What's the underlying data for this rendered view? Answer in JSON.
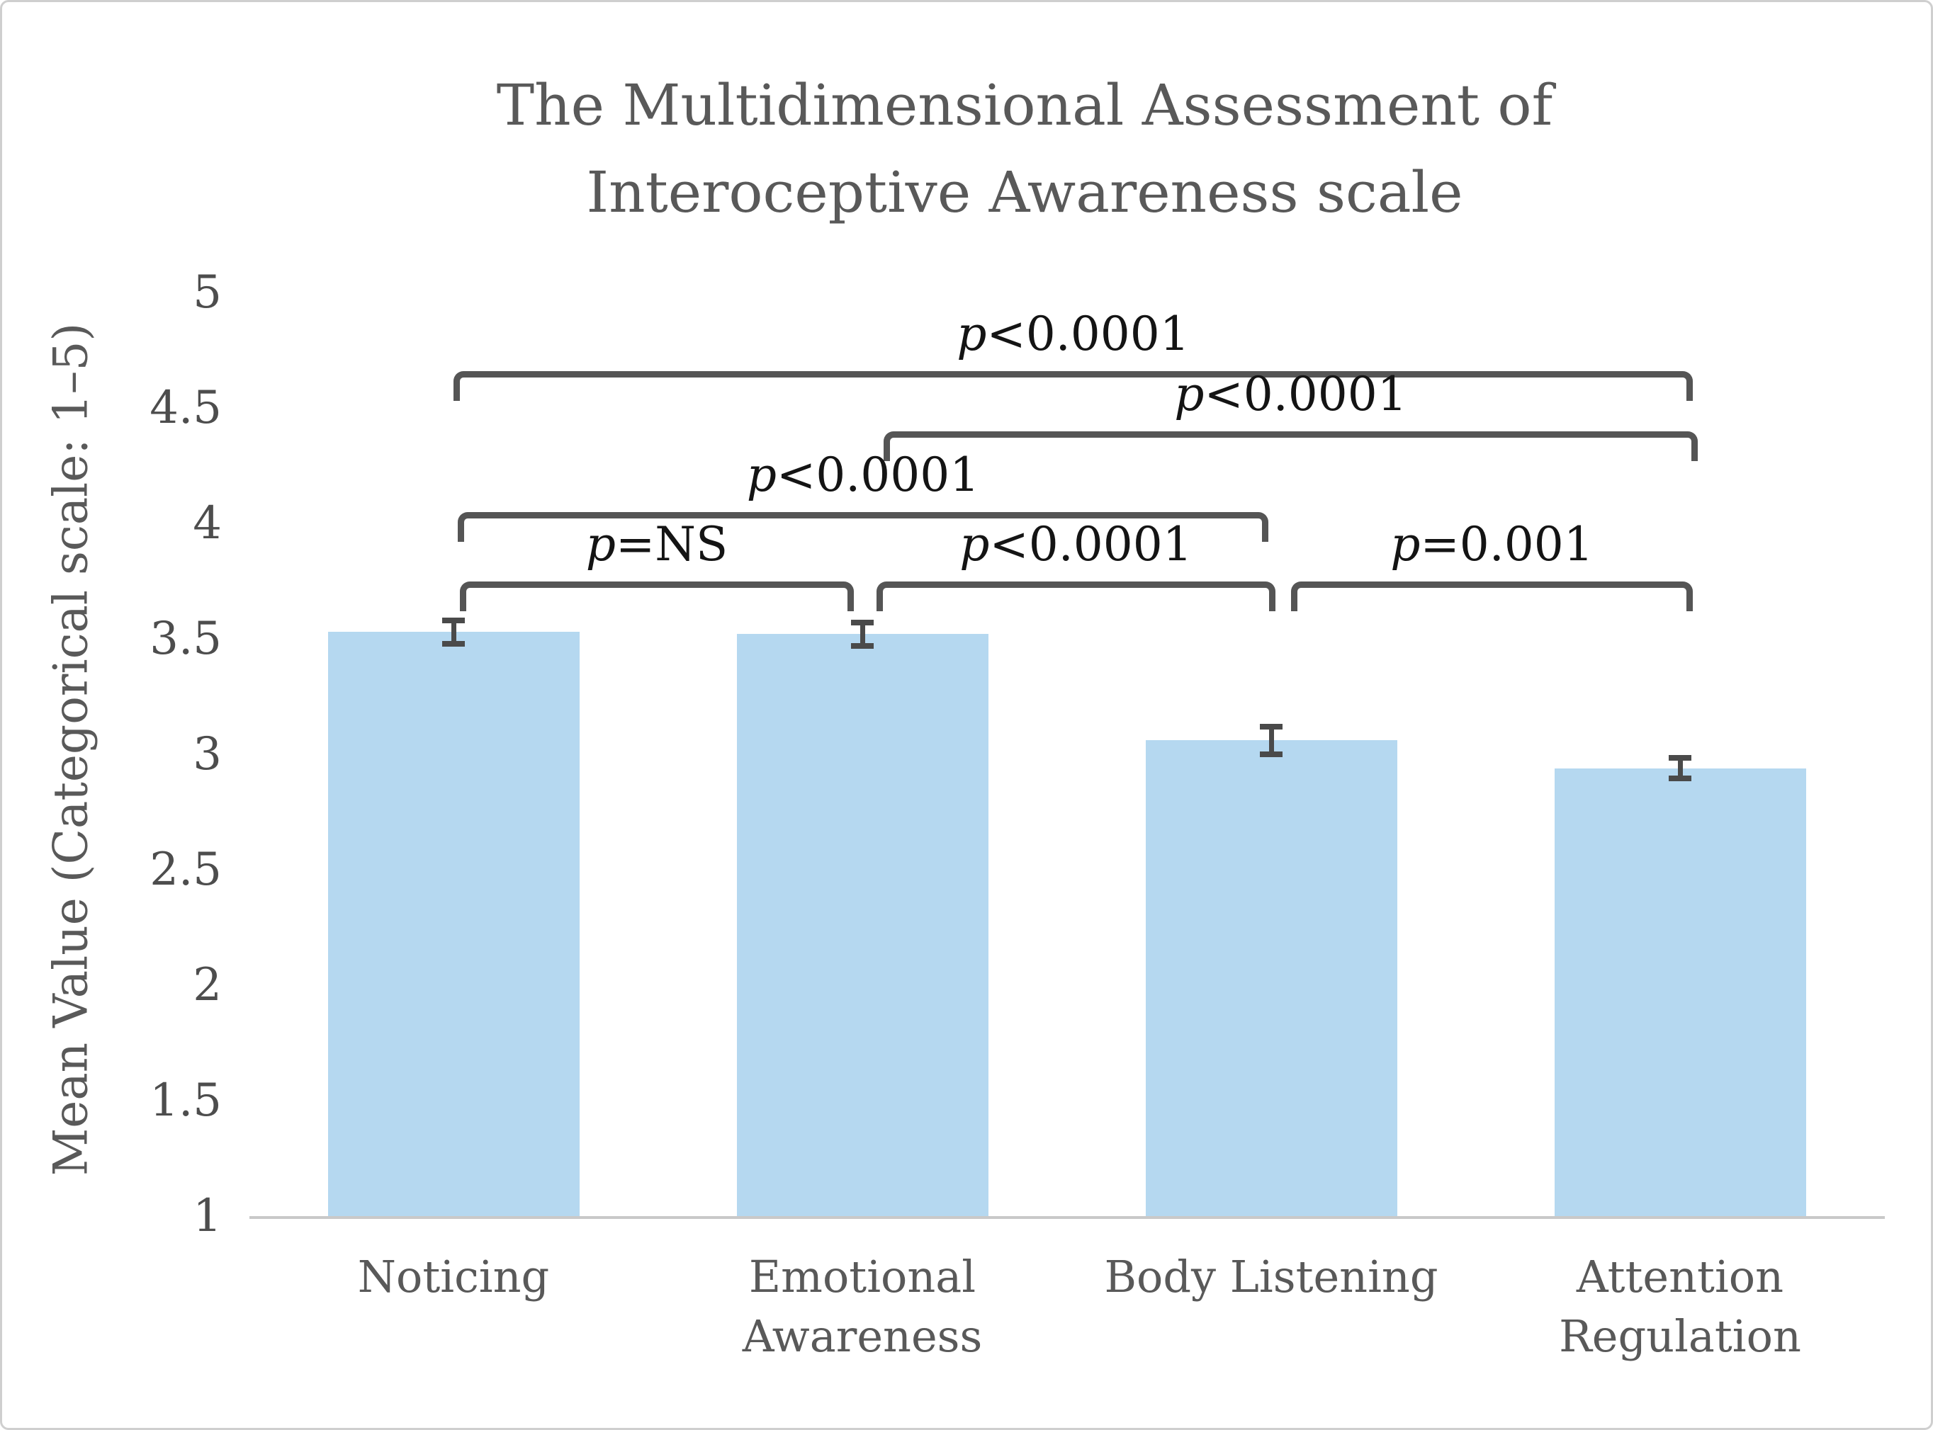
{
  "figure": {
    "title": "The Multidimensional Assessment of Interoceptive Awareness scale",
    "y_axis_label": "Mean Value (Categorical scale: 1–5)"
  },
  "chart_data": {
    "type": "bar",
    "title": "The Multidimensional Assessment of Interoceptive Awareness scale",
    "xlabel": "",
    "ylabel": "Mean Value (Categorical scale: 1–5)",
    "categories": [
      "Noticing",
      "Emotional Awareness",
      "Body Listening",
      "Attention Regulation"
    ],
    "values": [
      3.53,
      3.52,
      3.06,
      2.94
    ],
    "error_bars": [
      0.05,
      0.05,
      0.06,
      0.045
    ],
    "ylim": [
      1,
      5
    ],
    "yticks": [
      5,
      4.5,
      4,
      3.5,
      3,
      2.5,
      2,
      1.5,
      1
    ],
    "grid": false,
    "legend": false,
    "colors": {
      "bar_fill": "#B5D8F0",
      "axis_line": "#C9C9C9",
      "bracket": "#555555",
      "error_bar": "#4A4A4A",
      "text": "#595959",
      "p_label": "#141414",
      "background": "#FFFFFF",
      "figure_border": "#CFCFCF"
    },
    "significance_brackets": [
      {
        "from": 0,
        "to": 3,
        "level": 4.66,
        "label": "p<0.0001",
        "dx1": 0,
        "dx2": 18
      },
      {
        "from": 1,
        "to": 3,
        "level": 4.4,
        "label": "p<0.0001",
        "dx1": 30,
        "dx2": 25
      },
      {
        "from": 0,
        "to": 2,
        "level": 4.05,
        "label": "p<0.0001",
        "dx1": 6,
        "dx2": -4
      },
      {
        "from": 0,
        "to": 1,
        "level": 3.75,
        "label": "p=NS",
        "dx1": 9,
        "dx2": -12
      },
      {
        "from": 1,
        "to": 2,
        "level": 3.75,
        "label": "p<0.0001",
        "dx1": 20,
        "dx2": 6
      },
      {
        "from": 2,
        "to": 3,
        "level": 3.75,
        "label": "p=0.001",
        "dx1": 28,
        "dx2": 18
      }
    ]
  }
}
